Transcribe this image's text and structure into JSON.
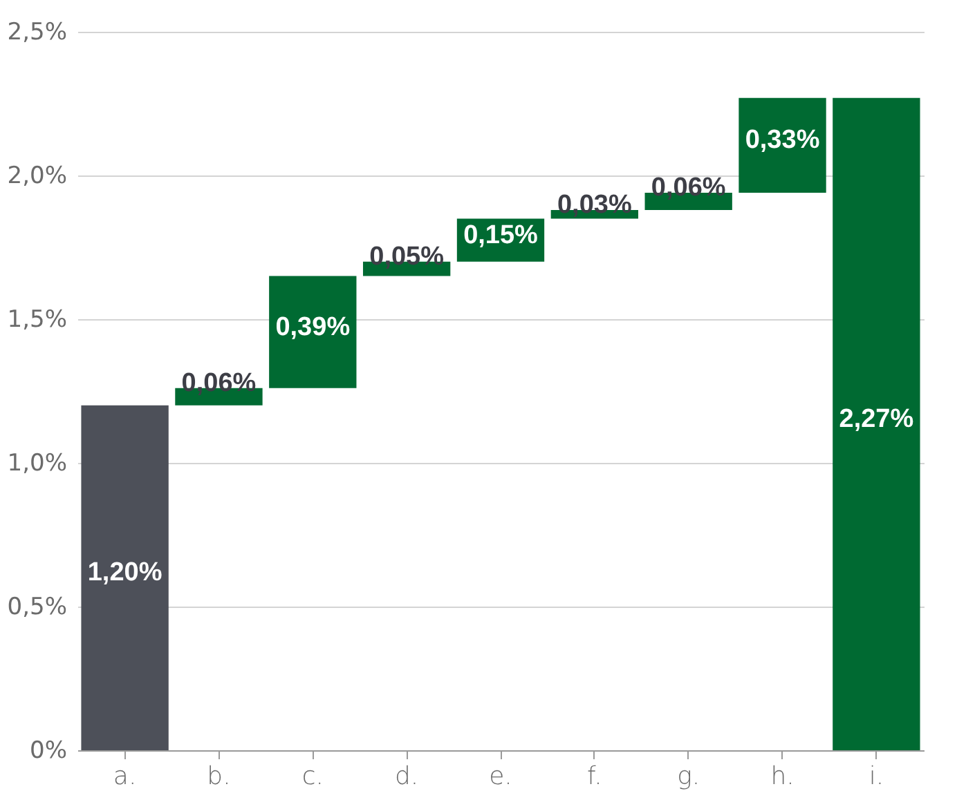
{
  "chart_data": {
    "type": "bar",
    "categories": [
      "a.",
      "b.",
      "c.",
      "d.",
      "e.",
      "f.",
      "g.",
      "h.",
      "i."
    ],
    "values": [
      1.2,
      0.06,
      0.39,
      0.05,
      0.15,
      0.03,
      0.06,
      0.33,
      2.27
    ],
    "base": [
      0,
      1.2,
      1.26,
      1.65,
      1.7,
      1.85,
      1.88,
      1.94,
      0
    ],
    "colors": [
      "#4d5059",
      "#006a32",
      "#006a32",
      "#006a32",
      "#006a32",
      "#006a32",
      "#006a32",
      "#006a32",
      "#006a32"
    ],
    "value_labels": [
      "1,20%",
      "0,06%",
      "0,39%",
      "0,05%",
      "0,15%",
      "0,03%",
      "0,06%",
      "0,33%",
      "2,27%"
    ],
    "ylim": [
      0,
      2.5
    ],
    "yticks": [
      {
        "value": 0,
        "label": "0%"
      },
      {
        "value": 0.5,
        "label": "0,5%"
      },
      {
        "value": 1,
        "label": "1,0%"
      },
      {
        "value": 1.5,
        "label": "1,5%"
      },
      {
        "value": 2,
        "label": "2,0%"
      },
      {
        "value": 2.5,
        "label": "2,5%"
      }
    ],
    "grid": "y"
  }
}
